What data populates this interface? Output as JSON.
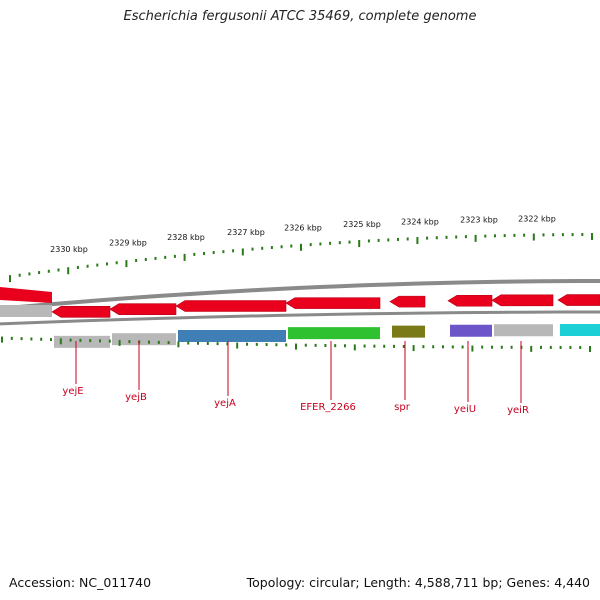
{
  "title": "Escherichia fergusonii ATCC 35469, complete genome",
  "footer": {
    "accession": "Accession: NC_011740",
    "summary": "Topology: circular; Length: 4,588,711 bp; Genes: 4,440"
  },
  "ruler": [
    {
      "label": "2330 kbp"
    },
    {
      "label": "2329 kbp"
    },
    {
      "label": "2328 kbp"
    },
    {
      "label": "2327 kbp"
    },
    {
      "label": "2326 kbp"
    },
    {
      "label": "2325 kbp"
    },
    {
      "label": "2324 kbp"
    },
    {
      "label": "2323 kbp"
    },
    {
      "label": "2322 kbp"
    }
  ],
  "colors": {
    "gene": "#e8001c",
    "label": "#c8001e",
    "tick": "#2a7a1a",
    "backbone": "#8a8a8a",
    "cog_gray": "#b8b8b8",
    "cog_blue": "#3f7fb5",
    "cog_green": "#2fc12f",
    "cog_olive": "#7a7a18",
    "cog_purple": "#6b55c8",
    "cog_cyan": "#1ccfd6"
  },
  "genes": [
    {
      "name": "yejE",
      "strand": "minus",
      "cog": "cog_gray"
    },
    {
      "name": "yejB",
      "strand": "minus",
      "cog": "cog_gray"
    },
    {
      "name": "yejA",
      "strand": "minus",
      "cog": "cog_blue"
    },
    {
      "name": "EFER_2266",
      "strand": "minus",
      "cog": "cog_green"
    },
    {
      "name": "spr",
      "strand": "minus",
      "cog": "cog_olive"
    },
    {
      "name": "yeiU",
      "strand": "minus",
      "cog": "cog_purple"
    },
    {
      "name": "yeiR",
      "strand": "minus",
      "cog": "cog_gray"
    },
    {
      "name": "",
      "strand": "minus",
      "cog": "cog_cyan"
    }
  ]
}
